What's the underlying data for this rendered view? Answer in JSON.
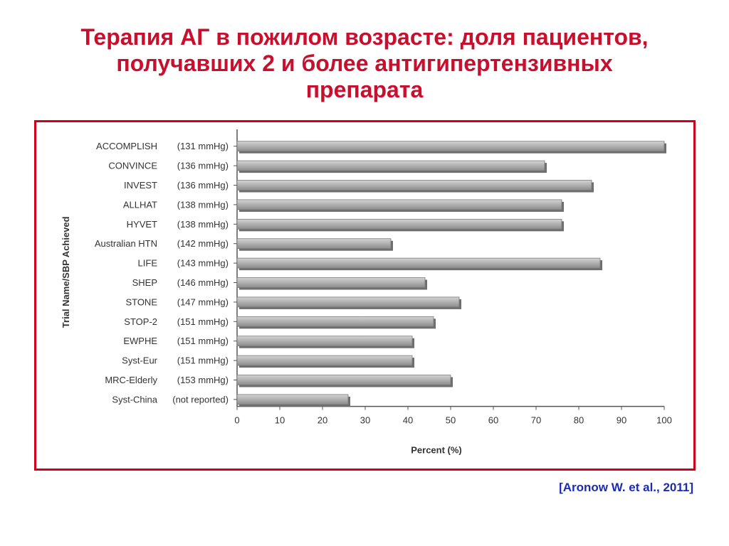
{
  "slide": {
    "title_lines": [
      "Терапия АГ в пожилом возрасте: доля пациентов,",
      "получавших 2 и более антигипертензивных",
      "препарата"
    ],
    "citation": "[Aronow W. et al., 2011]",
    "title_color": "#c8102e",
    "frame_color": "#d0021b",
    "citation_color": "#1a2bb8"
  },
  "chart_data": {
    "type": "bar",
    "orientation": "horizontal",
    "xlabel": "Percent (%)",
    "ylabel": "Trial Name/SBP Achieved",
    "xlim": [
      0,
      100
    ],
    "xticks": [
      "0",
      "10",
      "20",
      "30",
      "40",
      "50",
      "60",
      "70",
      "80",
      "90",
      "100"
    ],
    "grid": false,
    "bar_color": "#a9a9a9",
    "categories": [
      {
        "name": "ACCOMPLISH",
        "sbp": "(131 mmHg)",
        "value": 100
      },
      {
        "name": "CONVINCE",
        "sbp": "(136 mmHg)",
        "value": 72
      },
      {
        "name": "INVEST",
        "sbp": "(136 mmHg)",
        "value": 83
      },
      {
        "name": "ALLHAT",
        "sbp": "(138 mmHg)",
        "value": 76
      },
      {
        "name": "HYVET",
        "sbp": "(138 mmHg)",
        "value": 76
      },
      {
        "name": "Australian HTN",
        "sbp": "(142 mmHg)",
        "value": 36
      },
      {
        "name": "LIFE",
        "sbp": "(143 mmHg)",
        "value": 85
      },
      {
        "name": "SHEP",
        "sbp": "(146 mmHg)",
        "value": 44
      },
      {
        "name": "STONE",
        "sbp": "(147 mmHg)",
        "value": 52
      },
      {
        "name": "STOP-2",
        "sbp": "(151 mmHg)",
        "value": 46
      },
      {
        "name": "EWPHE",
        "sbp": "(151 mmHg)",
        "value": 41
      },
      {
        "name": "Syst-Eur",
        "sbp": "(151 mmHg)",
        "value": 41
      },
      {
        "name": "MRC-Elderly",
        "sbp": "(153 mmHg)",
        "value": 50
      },
      {
        "name": "Syst-China",
        "sbp": "(not reported)",
        "value": 26
      }
    ]
  }
}
